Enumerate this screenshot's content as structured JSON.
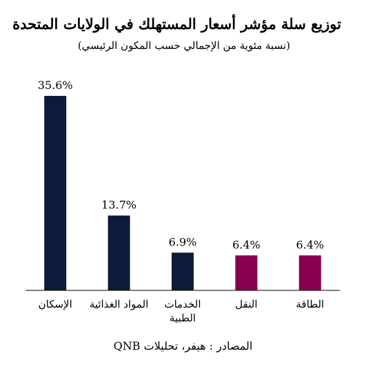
{
  "chart_data": {
    "type": "bar",
    "title": "توزيع سلة مؤشر أسعار المستهلك في الولايات المتحدة",
    "subtitle": "(نسبة مئوية من الإجمالي حسب المكون الرئيسي)",
    "categories": [
      "الإسكان",
      "المواد الغذائية",
      "الخدمات الطبية",
      "النقل",
      "الطاقة"
    ],
    "values": [
      35.6,
      13.7,
      6.9,
      6.4,
      6.4
    ],
    "value_labels": [
      "35.6%",
      "13.7%",
      "6.9%",
      "6.4%",
      "6.4%"
    ],
    "bar_colors": [
      "#0d1a3a",
      "#0d1a3a",
      "#0d1a3a",
      "#870050",
      "#870050"
    ],
    "xlabel": "",
    "ylabel": "",
    "ylim": [
      0,
      35.6
    ],
    "grid": false,
    "legend": "none"
  },
  "source": "المصادر : هيفر، تحليلات QNB"
}
